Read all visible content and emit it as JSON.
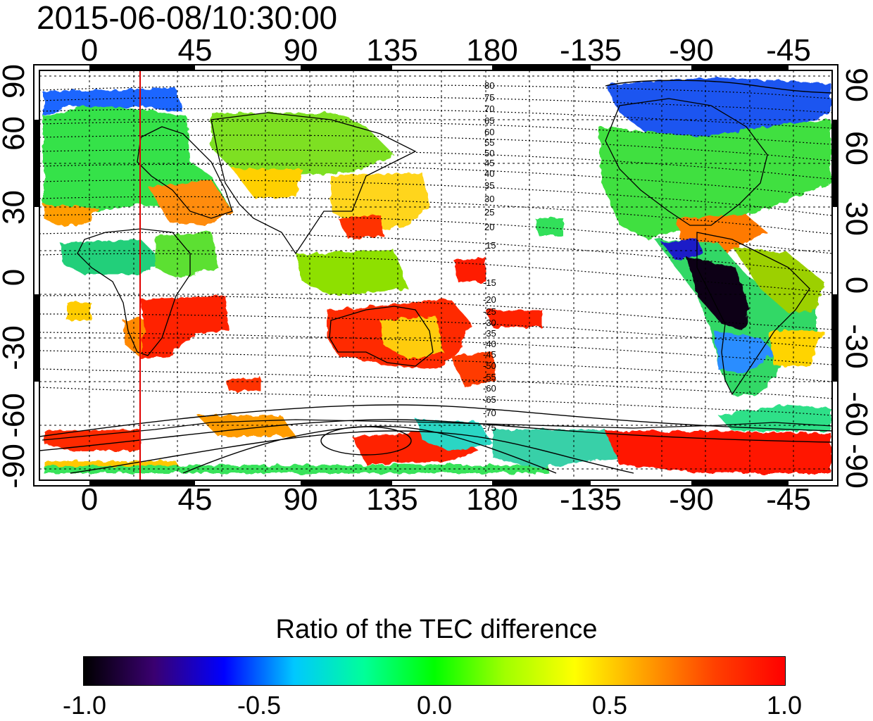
{
  "timestamp": "2015-06-08/10:30:00",
  "x_ticks_top": [
    "0",
    "45",
    "90",
    "135",
    "180",
    "-135",
    "-90",
    "-45"
  ],
  "x_ticks_bottom": [
    "0",
    "45",
    "90",
    "135",
    "180",
    "-135",
    "-90",
    "-45"
  ],
  "y_ticks_left": [
    "90",
    "60",
    "30",
    "0",
    "-30",
    "-60",
    "-90"
  ],
  "y_ticks_right": [
    "90",
    "60",
    "30",
    "0",
    "-30",
    "-60",
    "-90"
  ],
  "contour_labels_north": [
    "80",
    "75",
    "70",
    "65",
    "60",
    "55",
    "50",
    "45",
    "40",
    "35",
    "30",
    "25",
    "20",
    "15"
  ],
  "contour_labels_south": [
    "-15",
    "-20",
    "-25",
    "-30",
    "-35",
    "-40",
    "-45",
    "-50",
    "-55",
    "-60",
    "-65",
    "-70",
    "-75"
  ],
  "colorbar": {
    "title": "Ratio of the TEC difference",
    "ticks": [
      "-1.0",
      "-0.5",
      "0.0",
      "0.5",
      "1.0"
    ],
    "range": [
      -1.0,
      1.0
    ],
    "colors": [
      "#000000",
      "#3a0070",
      "#0000ff",
      "#00c8ff",
      "#00ff99",
      "#00ff00",
      "#a0ff00",
      "#ffff00",
      "#ffa000",
      "#ff4000",
      "#ff0000"
    ]
  },
  "colors": {
    "meridian_marker": "#e00000",
    "frame": "#000000"
  }
}
